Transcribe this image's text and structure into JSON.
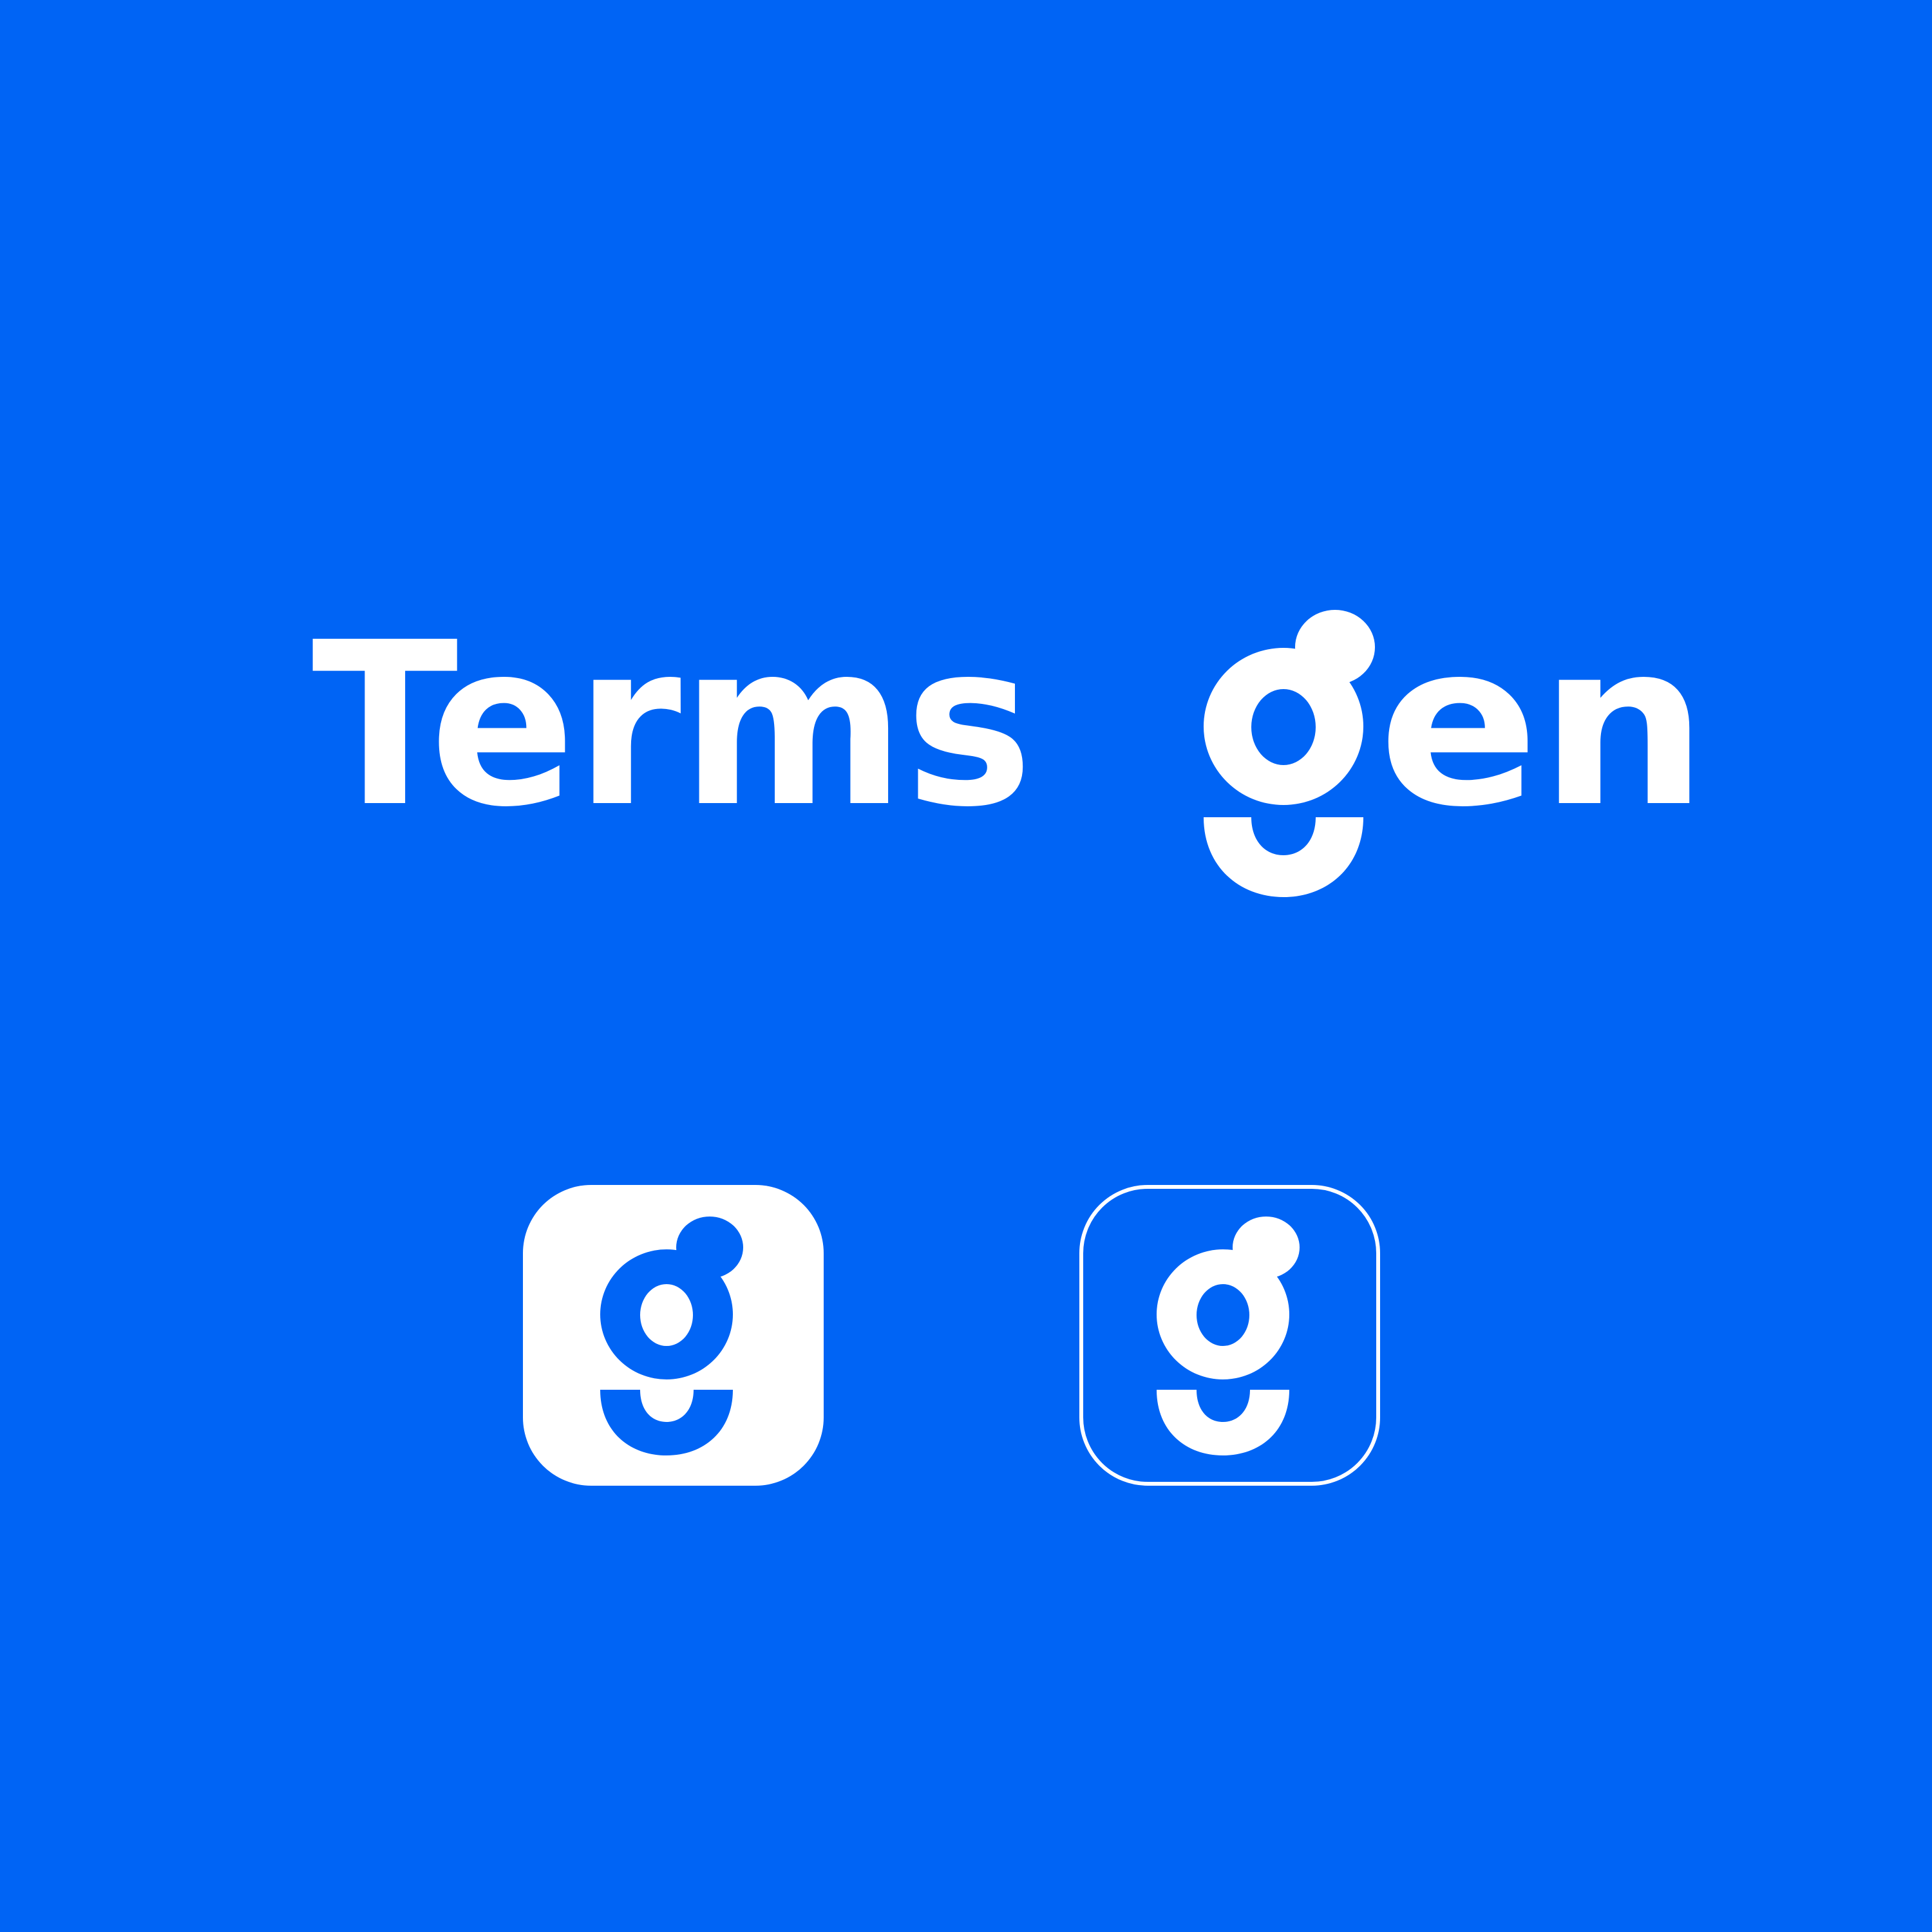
{
  "brand": {
    "name_part_1": "Termsg",
    "name_part_2": "en",
    "full_name": "Termsgen",
    "background_color": "#0064F5",
    "foreground_color": "#FFFFFF"
  },
  "icons": {
    "filled_app_icon": "g-monogram-on-white-rounded-square",
    "outline_app_icon": "g-monogram-in-white-outlined-rounded-square"
  }
}
